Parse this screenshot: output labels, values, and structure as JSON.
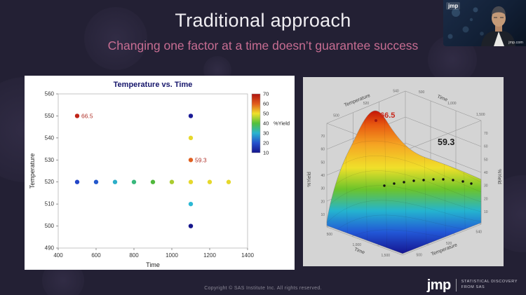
{
  "slide": {
    "title": "Traditional approach",
    "subtitle": "Changing one factor at a time doesn’t guarantee success",
    "footer_copyright": "Copyright © SAS Institute Inc. All rights reserved.",
    "background_color": "#232034",
    "title_color": "#f0eef2",
    "subtitle_color": "#c76d92"
  },
  "webcam": {
    "logo": "jmp",
    "watermark": "jmp.com"
  },
  "brand": {
    "logo": "jmp",
    "tagline_line1": "STATISTICAL DISCOVERY",
    "tagline_line2": "FROM SAS"
  },
  "chart_data": [
    {
      "type": "scatter",
      "title": "Temperature vs. Time",
      "xlabel": "Time",
      "ylabel": "Temperature",
      "xlim": [
        400,
        1400
      ],
      "ylim": [
        490,
        560
      ],
      "x_ticks": [
        400,
        600,
        800,
        1000,
        1200,
        1400
      ],
      "y_ticks": [
        490,
        500,
        510,
        520,
        530,
        540,
        550,
        560
      ],
      "legend": {
        "label": "%Yield",
        "ticks": [
          70,
          60,
          50,
          40,
          30,
          20,
          10
        ],
        "colors_top_to_bottom": [
          "#b01410",
          "#e05a1c",
          "#f0e02a",
          "#52c03c",
          "#28b4d0",
          "#2450cc",
          "#14148c"
        ]
      },
      "points": [
        {
          "time": 500,
          "temperature": 550,
          "yield": 66.5,
          "color": "#c02418"
        },
        {
          "time": 500,
          "temperature": 520,
          "yield": 18,
          "color": "#2346c8"
        },
        {
          "time": 600,
          "temperature": 520,
          "yield": 21,
          "color": "#2358cc"
        },
        {
          "time": 700,
          "temperature": 520,
          "yield": 28,
          "color": "#2caec8"
        },
        {
          "time": 800,
          "temperature": 520,
          "yield": 34,
          "color": "#38b87c"
        },
        {
          "time": 900,
          "temperature": 520,
          "yield": 40,
          "color": "#50b83c"
        },
        {
          "time": 1000,
          "temperature": 520,
          "yield": 46,
          "color": "#aacc30"
        },
        {
          "time": 1100,
          "temperature": 520,
          "yield": 50,
          "color": "#e6d82c"
        },
        {
          "time": 1200,
          "temperature": 520,
          "yield": 50,
          "color": "#e6d82c"
        },
        {
          "time": 1300,
          "temperature": 520,
          "yield": 49,
          "color": "#e6d82c"
        },
        {
          "time": 1100,
          "temperature": 500,
          "yield": 10,
          "color": "#16168c"
        },
        {
          "time": 1100,
          "temperature": 510,
          "yield": 30,
          "color": "#2cb8d4"
        },
        {
          "time": 1100,
          "temperature": 530,
          "yield": 59.3,
          "color": "#e06020"
        },
        {
          "time": 1100,
          "temperature": 540,
          "yield": 50,
          "color": "#e6d82c"
        },
        {
          "time": 1100,
          "temperature": 550,
          "yield": 12,
          "color": "#1a1a96"
        }
      ],
      "annotations": [
        {
          "text": "66.5",
          "time": 500,
          "temperature": 550,
          "color": "#b03028"
        },
        {
          "text": "59.3",
          "time": 1100,
          "temperature": 530,
          "color": "#b03028"
        }
      ]
    },
    {
      "type": "surface",
      "axes": {
        "x": "Time",
        "y": "Temperature",
        "z": "%Yield"
      },
      "x_ticks": [
        "500",
        "1,000",
        "1,500"
      ],
      "y_ticks": [
        "500",
        "520",
        "540"
      ],
      "z_ticks": [
        "10",
        "20",
        "30",
        "40",
        "50",
        "60",
        "70"
      ],
      "zlim": [
        0,
        70
      ],
      "annotations": [
        {
          "text": "66.5",
          "color": "#c8281c"
        },
        {
          "text": "59.3",
          "color": "#1a1a1a"
        }
      ],
      "colormap_low_to_high": [
        "#151591",
        "#2257d6",
        "#24b4cf",
        "#6cc42a",
        "#f0e02a",
        "#f5a623",
        "#e85a10",
        "#c41408"
      ]
    }
  ]
}
